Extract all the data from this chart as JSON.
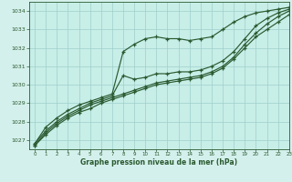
{
  "title": "Graphe pression niveau de la mer (hPa)",
  "bg_color": "#d4f0ec",
  "plot_bg_color": "#c8eee8",
  "grid_color": "#9ecfca",
  "line_color": "#2a5a30",
  "xlim": [
    -0.5,
    23
  ],
  "ylim": [
    1026.5,
    1034.5
  ],
  "yticks": [
    1027,
    1028,
    1029,
    1030,
    1031,
    1032,
    1033,
    1034
  ],
  "xticks": [
    0,
    1,
    2,
    3,
    4,
    5,
    6,
    7,
    8,
    9,
    10,
    11,
    12,
    13,
    14,
    15,
    16,
    17,
    18,
    19,
    20,
    21,
    22,
    23
  ],
  "series": [
    [
      1026.8,
      1027.7,
      1028.2,
      1028.6,
      1028.9,
      1029.1,
      1029.3,
      1029.5,
      1031.8,
      1032.2,
      1032.5,
      1032.6,
      1032.5,
      1032.5,
      1032.4,
      1032.5,
      1032.6,
      1033.0,
      1033.4,
      1033.7,
      1033.9,
      1034.0,
      1034.1,
      1034.2
    ],
    [
      1026.8,
      1027.5,
      1028.0,
      1028.4,
      1028.7,
      1029.0,
      1029.2,
      1029.4,
      1030.5,
      1030.3,
      1030.4,
      1030.6,
      1030.6,
      1030.7,
      1030.7,
      1030.8,
      1031.0,
      1031.3,
      1031.8,
      1032.5,
      1033.2,
      1033.6,
      1033.9,
      1034.1
    ],
    [
      1026.7,
      1027.4,
      1027.9,
      1028.3,
      1028.6,
      1028.9,
      1029.1,
      1029.3,
      1029.5,
      1029.7,
      1029.9,
      1030.1,
      1030.2,
      1030.3,
      1030.4,
      1030.5,
      1030.7,
      1031.0,
      1031.5,
      1032.2,
      1032.8,
      1033.3,
      1033.7,
      1034.0
    ],
    [
      1026.7,
      1027.3,
      1027.8,
      1028.2,
      1028.5,
      1028.7,
      1029.0,
      1029.2,
      1029.4,
      1029.6,
      1029.8,
      1030.0,
      1030.1,
      1030.2,
      1030.3,
      1030.4,
      1030.6,
      1030.9,
      1031.4,
      1032.0,
      1032.6,
      1033.0,
      1033.4,
      1033.8
    ]
  ],
  "marker_hours": [
    [
      0,
      1,
      2,
      3,
      4,
      5,
      6,
      7,
      8,
      9,
      10,
      11,
      12,
      13,
      14,
      15,
      16,
      17,
      18,
      19,
      20,
      21,
      22,
      23
    ],
    [
      0,
      1,
      2,
      3,
      4,
      5,
      6,
      7,
      8,
      9,
      10,
      11,
      12,
      13,
      14,
      15,
      16,
      17,
      18,
      19,
      20,
      21,
      22,
      23
    ],
    [
      0,
      1,
      2,
      3,
      4,
      5,
      6,
      7,
      8,
      9,
      10,
      11,
      12,
      13,
      14,
      15,
      16,
      17,
      18,
      19,
      20,
      21,
      22,
      23
    ],
    [
      0,
      1,
      2,
      3,
      4,
      5,
      6,
      7,
      8,
      9,
      10,
      11,
      12,
      13,
      14,
      15,
      16,
      17,
      18,
      19,
      20,
      21,
      22,
      23
    ]
  ]
}
